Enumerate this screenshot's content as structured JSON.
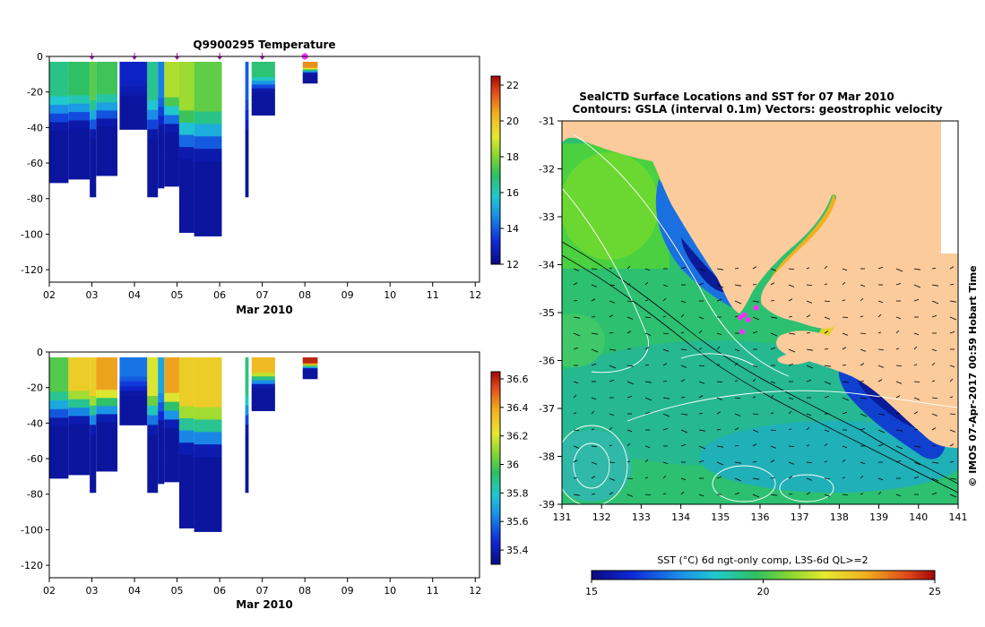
{
  "chart_data": [
    {
      "type": "heatmap",
      "title": "Q9900295  Temperature",
      "xlabel": "Mar 2010",
      "ylabel": "",
      "x_ticks": [
        "02",
        "03",
        "04",
        "05",
        "06",
        "07",
        "08",
        "09",
        "10",
        "11",
        "12"
      ],
      "y_ticks": [
        "0",
        "-20",
        "-40",
        "-60",
        "-80",
        "-100",
        "-120"
      ],
      "xlim": [
        2,
        12.1
      ],
      "ylim": [
        -127,
        0
      ],
      "colorbar": {
        "min": 12,
        "max": 22.5,
        "ticks": [
          "12",
          "14",
          "16",
          "18",
          "20",
          "22"
        ]
      },
      "profile_markers": [
        3,
        4,
        5,
        6,
        7,
        8
      ],
      "profiles": [
        {
          "x0": 2.0,
          "x1": 2.45,
          "depth": 71,
          "surface": 16.6
        },
        {
          "x0": 2.45,
          "x1": 2.95,
          "depth": 69,
          "surface": 17.0
        },
        {
          "x0": 2.95,
          "x1": 3.1,
          "depth": 79,
          "surface": 17.5
        },
        {
          "x0": 3.1,
          "x1": 3.6,
          "depth": 67,
          "surface": 17.2
        },
        {
          "x0": 3.65,
          "x1": 4.3,
          "depth": 41,
          "surface": 13.0
        },
        {
          "x0": 4.3,
          "x1": 4.55,
          "depth": 79,
          "surface": 16.5
        },
        {
          "x0": 4.55,
          "x1": 4.7,
          "depth": 74,
          "surface": 14.5
        },
        {
          "x0": 4.7,
          "x1": 5.05,
          "depth": 73,
          "surface": 18.5
        },
        {
          "x0": 5.05,
          "x1": 5.4,
          "depth": 99,
          "surface": 18.3
        },
        {
          "x0": 5.4,
          "x1": 6.05,
          "depth": 101,
          "surface": 17.6
        },
        {
          "x0": 6.6,
          "x1": 6.68,
          "depth": 79,
          "surface": 14.0
        },
        {
          "x0": 6.75,
          "x1": 7.3,
          "depth": 33,
          "surface": 16.8
        },
        {
          "x0": 7.95,
          "x1": 8.3,
          "depth": 15,
          "surface": 20.8
        }
      ]
    },
    {
      "type": "heatmap",
      "title": "",
      "xlabel": "Mar 2010",
      "ylabel": "",
      "x_ticks": [
        "02",
        "03",
        "04",
        "05",
        "06",
        "07",
        "08",
        "09",
        "10",
        "11",
        "12"
      ],
      "y_ticks": [
        "0",
        "-20",
        "-40",
        "-60",
        "-80",
        "-100",
        "-120"
      ],
      "xlim": [
        2,
        12.1
      ],
      "ylim": [
        -127,
        0
      ],
      "colorbar": {
        "min": 35.3,
        "max": 36.65,
        "ticks": [
          "35.4",
          "35.6",
          "35.8",
          "36",
          "36.2",
          "36.4",
          "36.6"
        ]
      },
      "profiles": [
        {
          "x0": 2.0,
          "x1": 2.45,
          "depth": 71,
          "surface": 36.0
        },
        {
          "x0": 2.45,
          "x1": 2.95,
          "depth": 69,
          "surface": 36.3
        },
        {
          "x0": 2.95,
          "x1": 3.1,
          "depth": 79,
          "surface": 36.3
        },
        {
          "x0": 3.1,
          "x1": 3.6,
          "depth": 67,
          "surface": 36.4
        },
        {
          "x0": 3.65,
          "x1": 4.3,
          "depth": 41,
          "surface": 35.6
        },
        {
          "x0": 4.3,
          "x1": 4.55,
          "depth": 79,
          "surface": 36.2
        },
        {
          "x0": 4.55,
          "x1": 4.7,
          "depth": 74,
          "surface": 35.7
        },
        {
          "x0": 4.7,
          "x1": 5.05,
          "depth": 73,
          "surface": 36.4
        },
        {
          "x0": 5.05,
          "x1": 5.4,
          "depth": 99,
          "surface": 36.3
        },
        {
          "x0": 5.4,
          "x1": 6.05,
          "depth": 101,
          "surface": 36.3
        },
        {
          "x0": 6.6,
          "x1": 6.68,
          "depth": 79,
          "surface": 35.9
        },
        {
          "x0": 6.75,
          "x1": 7.3,
          "depth": 33,
          "surface": 36.35
        },
        {
          "x0": 7.95,
          "x1": 8.3,
          "depth": 15,
          "surface": 36.6
        }
      ]
    },
    {
      "type": "heatmap",
      "title": "SealCTD Surface Locations and SST for 07 Mar 2010",
      "subtitle": "Contours: GSLA (interval 0.1m) Vectors: geostrophic velocity",
      "xlabel": "",
      "ylabel": "",
      "x_ticks": [
        "131",
        "132",
        "133",
        "134",
        "135",
        "136",
        "137",
        "138",
        "139",
        "140",
        "141"
      ],
      "y_ticks": [
        "-31",
        "-32",
        "-33",
        "-34",
        "-35",
        "-36",
        "-37",
        "-38",
        "-39"
      ],
      "xlim": [
        131,
        141
      ],
      "ylim": [
        -39,
        -31
      ],
      "colorbar": {
        "label": "SST (°C) 6d ngt-only comp, L3S-6d QL>=2",
        "min": 15,
        "max": 25,
        "ticks": [
          "15",
          "20",
          "25"
        ]
      },
      "seal_locations": [
        [
          135.5,
          -35.1
        ],
        [
          135.6,
          -35.05
        ],
        [
          135.7,
          -35.15
        ],
        [
          135.9,
          -34.9
        ],
        [
          135.55,
          -35.4
        ]
      ],
      "side_label": "© IMOS 07-Apr-2017 00:59 Hobart Time"
    }
  ]
}
